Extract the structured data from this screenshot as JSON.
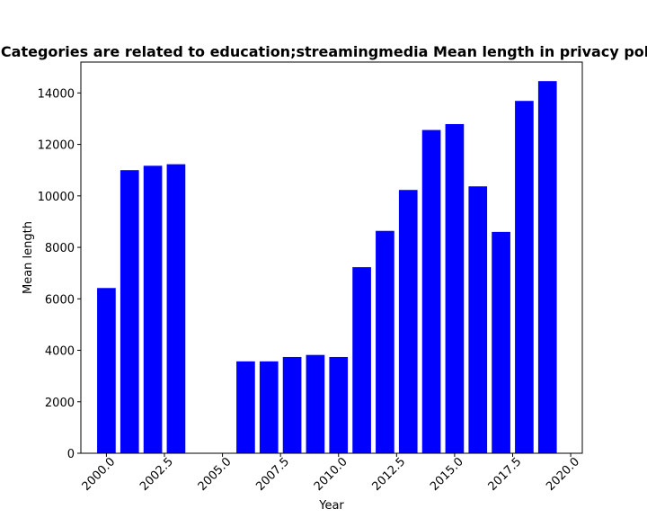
{
  "chart_data": {
    "type": "bar",
    "title": "Categories are related to education;streamingmedia Mean length in privacy policies",
    "xlabel": "Year",
    "ylabel": "Mean length",
    "bar_color": "#0000ff",
    "grid": false,
    "legend": "none",
    "xlim": [
      1998.9,
      2020.5
    ],
    "ylim": [
      0,
      15200
    ],
    "x_tick_values": [
      2000.0,
      2002.5,
      2005.0,
      2007.5,
      2010.0,
      2012.5,
      2015.0,
      2017.5,
      2020.0
    ],
    "x_tick_labels": [
      "2000.0",
      "2002.5",
      "2005.0",
      "2007.5",
      "2010.0",
      "2012.5",
      "2015.0",
      "2017.5",
      "2020.0"
    ],
    "y_tick_values": [
      0,
      2000,
      4000,
      6000,
      8000,
      10000,
      12000,
      14000
    ],
    "y_tick_labels": [
      "0",
      "2000",
      "4000",
      "6000",
      "8000",
      "10000",
      "12000",
      "14000"
    ],
    "x": [
      2000,
      2001,
      2002,
      2003,
      2006,
      2007,
      2008,
      2009,
      2010,
      2011,
      2012,
      2013,
      2014,
      2015,
      2016,
      2017,
      2018,
      2019
    ],
    "values": [
      6420,
      11000,
      11170,
      11230,
      3570,
      3570,
      3740,
      3820,
      3740,
      7230,
      8640,
      10230,
      12560,
      12790,
      10370,
      8600,
      13690,
      14460
    ]
  }
}
